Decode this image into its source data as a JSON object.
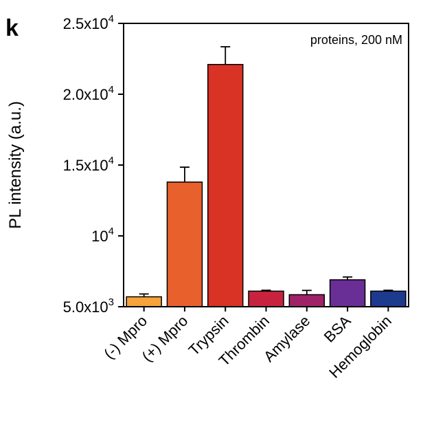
{
  "panel_label": "k",
  "chart_data": {
    "type": "bar",
    "title": "",
    "annotation": "proteins, 200 nM",
    "xlabel": "",
    "ylabel": "PL intensity (a.u.)",
    "ylim": [
      5000,
      25000
    ],
    "yticks": [
      {
        "value": 5000,
        "base": "5.0x10",
        "exp": "3"
      },
      {
        "value": 10000,
        "base": "10",
        "exp": "4"
      },
      {
        "value": 15000,
        "base": "1.5x10",
        "exp": "4"
      },
      {
        "value": 20000,
        "base": "2.0x10",
        "exp": "4"
      },
      {
        "value": 25000,
        "base": "2.5x10",
        "exp": "4"
      }
    ],
    "categories": [
      "(-) Mpro",
      "(+) Mpro",
      "Trypsin",
      "Thrombin",
      "Amylase",
      "BSA",
      "Hemoglobin"
    ],
    "values": [
      5700,
      13800,
      22100,
      6100,
      5850,
      6900,
      6100
    ],
    "errors": [
      200,
      1050,
      1250,
      60,
      300,
      200,
      60
    ],
    "colors": [
      "#f5a33a",
      "#e8612c",
      "#d93325",
      "#c8233e",
      "#a02367",
      "#6a2f96",
      "#1c3a8e"
    ],
    "grid": false,
    "legend": "none"
  }
}
